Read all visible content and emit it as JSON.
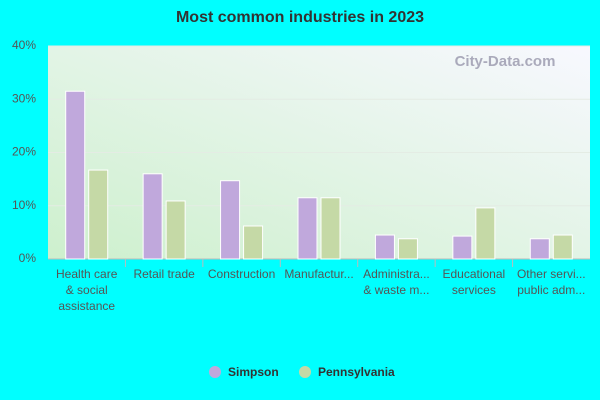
{
  "chart_data": {
    "type": "bar",
    "title": "Most common industries in 2023",
    "watermark": "City-Data.com",
    "categories": [
      "Health care\n& social\nassistance",
      "Retail trade",
      "Construction",
      "Manufactur...",
      "Administra...\n& waste m...",
      "Educational\nservices",
      "Other servi...\npublic adm..."
    ],
    "series": [
      {
        "name": "Simpson",
        "color": "#c0a8dc",
        "values": [
          31.5,
          16,
          14.7,
          11.5,
          4.5,
          4.3,
          3.8
        ]
      },
      {
        "name": "Pennsylvania",
        "color": "#c5d9a6",
        "values": [
          16.7,
          10.9,
          6.2,
          11.5,
          3.8,
          9.6,
          4.5
        ]
      }
    ],
    "ylim": [
      0,
      40
    ],
    "yticks": [
      {
        "value": 0,
        "label": "0%"
      },
      {
        "value": 10,
        "label": "10%"
      },
      {
        "value": 20,
        "label": "20%"
      },
      {
        "value": 30,
        "label": "30%"
      },
      {
        "value": 40,
        "label": "40%"
      }
    ],
    "grid": true,
    "legend": "bottom"
  }
}
